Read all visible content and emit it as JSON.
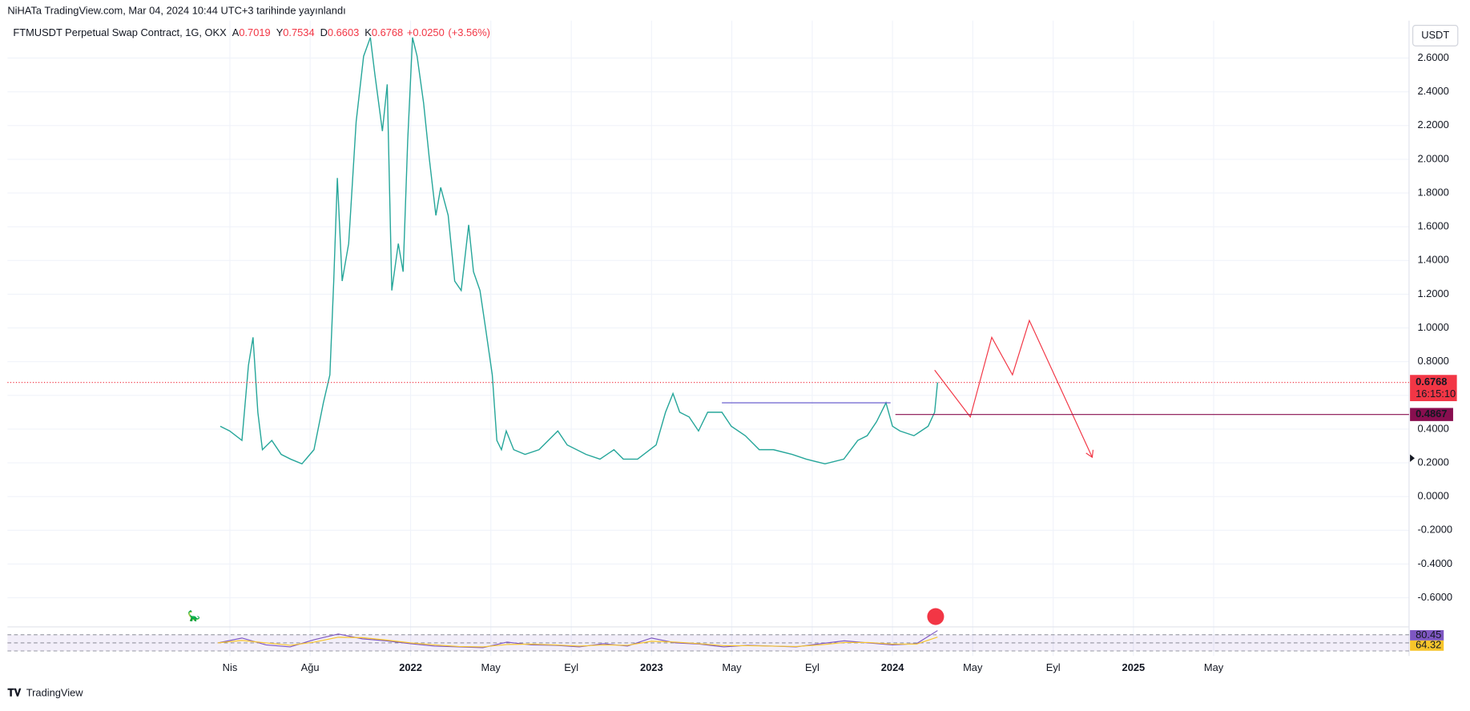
{
  "chart_data": {
    "type": "line",
    "watermark": "NiHATa TradingView.com, Mar 04, 2024 10:44 UTC+3 tarihinde yayınlandı",
    "symbol": "FTMUSDT Perpetual Swap Contract, 1G, OKX",
    "ohlc": [
      {
        "label": "A",
        "value": 0.7019
      },
      {
        "label": "Y",
        "value": 0.7534
      },
      {
        "label": "D",
        "value": 0.6603
      },
      {
        "label": "K",
        "value": 0.6768
      }
    ],
    "change": "+0.0250",
    "change_pct": "(+3.56%)",
    "currency": "USDT",
    "brand": "TradingView",
    "countdown": "16:15:10",
    "xlim": [
      2020.327,
      2026.144
    ],
    "xticks": [
      {
        "value": 2021.25,
        "label": "Nis"
      },
      {
        "value": 2021.583,
        "label": "Ağu"
      },
      2022,
      {
        "value": 2022.333,
        "label": "May"
      },
      {
        "value": 2022.667,
        "label": "Eyl"
      },
      2023,
      {
        "value": 2023.333,
        "label": "May"
      },
      {
        "value": 2023.667,
        "label": "Eyl"
      },
      2024,
      {
        "value": 2024.333,
        "label": "May"
      },
      {
        "value": 2024.667,
        "label": "Eyl"
      },
      2025,
      {
        "value": 2025.333,
        "label": "May"
      }
    ],
    "ylim": [
      -0.767,
      2.822
    ],
    "yticks": [
      {
        "value": 2.6,
        "label": "2.6000"
      },
      {
        "value": 2.4,
        "label": "2.4000"
      },
      {
        "value": 2.2,
        "label": "2.2000"
      },
      {
        "value": 2.0,
        "label": "2.0000"
      },
      {
        "value": 1.8,
        "label": "1.8000"
      },
      {
        "value": 1.6,
        "label": "1.6000"
      },
      {
        "value": 1.4,
        "label": "1.4000"
      },
      {
        "value": 1.2,
        "label": "1.2000"
      },
      {
        "value": 1.0,
        "label": "1.0000"
      },
      {
        "value": 0.8,
        "label": "0.8000"
      },
      {
        "value": 0.6,
        "label": "0.6000"
      },
      {
        "value": 0.4,
        "label": "0.4000"
      },
      {
        "value": 0.2,
        "label": "0.2000"
      },
      {
        "value": 0,
        "label": "0.0000"
      },
      {
        "value": -0.2,
        "label": "-0.2000"
      },
      {
        "value": -0.4,
        "label": "-0.4000"
      },
      {
        "value": -0.6,
        "label": "-0.6000"
      }
    ],
    "grid": true,
    "series": [
      {
        "color": "#26a69a",
        "x": [
          2021.21,
          2021.249,
          2021.3,
          2021.327,
          2021.346,
          2021.366,
          2021.385,
          2021.424,
          2021.463,
          2021.502,
          2021.549,
          2021.599,
          2021.638,
          2021.665,
          2021.681,
          2021.696,
          2021.716,
          2021.743,
          2021.774,
          2021.805,
          2021.833,
          2021.852,
          2021.883,
          2021.903,
          2021.922,
          2021.949,
          2021.969,
          2021.988,
          2022.008,
          2022.027,
          2022.054,
          2022.078,
          2022.105,
          2022.125,
          2022.156,
          2022.183,
          2022.21,
          2022.241,
          2022.261,
          2022.288,
          2022.311,
          2022.339,
          2022.358,
          2022.377,
          2022.397,
          2022.428,
          2022.475,
          2022.533,
          2022.611,
          2022.65,
          2022.728,
          2022.786,
          2022.844,
          2022.883,
          2022.942,
          2023.019,
          2023.058,
          2023.089,
          2023.117,
          2023.156,
          2023.195,
          2023.233,
          2023.292,
          2023.331,
          2023.389,
          2023.447,
          2023.506,
          2023.584,
          2023.642,
          2023.72,
          2023.798,
          2023.856,
          2023.895,
          2023.934,
          2023.973,
          2024.0,
          2024.031,
          2024.089,
          2024.148,
          2024.175,
          2024.187
        ],
        "values": [
          0.417,
          0.389,
          0.333,
          0.778,
          0.944,
          0.5,
          0.278,
          0.333,
          0.25,
          0.222,
          0.194,
          0.278,
          0.556,
          0.722,
          1.278,
          1.889,
          1.278,
          1.5,
          2.222,
          2.611,
          2.722,
          2.5,
          2.167,
          2.444,
          1.222,
          1.5,
          1.333,
          2.111,
          2.722,
          2.611,
          2.333,
          2.0,
          1.667,
          1.833,
          1.667,
          1.278,
          1.222,
          1.611,
          1.333,
          1.222,
          1.0,
          0.722,
          0.333,
          0.278,
          0.389,
          0.278,
          0.25,
          0.278,
          0.389,
          0.306,
          0.25,
          0.222,
          0.278,
          0.222,
          0.222,
          0.306,
          0.5,
          0.611,
          0.5,
          0.472,
          0.389,
          0.5,
          0.5,
          0.417,
          0.361,
          0.278,
          0.278,
          0.25,
          0.222,
          0.194,
          0.222,
          0.333,
          0.361,
          0.444,
          0.556,
          0.417,
          0.389,
          0.361,
          0.417,
          0.5,
          0.6768
        ]
      }
    ],
    "last_price": 0.6768,
    "level": {
      "value": 0.4867,
      "x": 2024.012,
      "color": "#880e4f"
    },
    "drawings": [
      {
        "color": "#5b4fc9",
        "x": [
          2023.292,
          2023.992
        ],
        "values": [
          0.556,
          0.556
        ]
      },
      {
        "color": "#f23645",
        "x": [
          2024.175,
          2024.323,
          2024.412,
          2024.498,
          2024.568,
          2024.829
        ],
        "values": [
          0.75,
          0.472,
          0.944,
          0.722,
          1.044,
          0.233
        ]
      }
    ],
    "rsi": {
      "ylim": [
        20,
        85
      ],
      "levels": [
        70,
        50,
        30
      ],
      "x": [
        2021.2,
        2021.3,
        2021.4,
        2021.5,
        2021.6,
        2021.7,
        2021.8,
        2021.9,
        2022.0,
        2022.1,
        2022.2,
        2022.3,
        2022.4,
        2022.5,
        2022.6,
        2022.7,
        2022.8,
        2022.9,
        2023.0,
        2023.1,
        2023.2,
        2023.3,
        2023.4,
        2023.5,
        2023.6,
        2023.7,
        2023.8,
        2023.9,
        2024.0,
        2024.1,
        2024.187
      ],
      "series": [
        {
          "color": "#7e57c2",
          "values": [
            50,
            62,
            45,
            40,
            58,
            72,
            60,
            55,
            48,
            42,
            40,
            38,
            52,
            45,
            44,
            40,
            48,
            42,
            62,
            50,
            47,
            40,
            44,
            42,
            40,
            48,
            55,
            50,
            45,
            48,
            80.45
          ]
        },
        {
          "color": "#f7c52b",
          "values": [
            50,
            56,
            50,
            44,
            52,
            64,
            63,
            57,
            50,
            45,
            41,
            40,
            46,
            47,
            45,
            42,
            45,
            44,
            54,
            52,
            48,
            43,
            43,
            42,
            41,
            45,
            51,
            51,
            47,
            47,
            64.32
          ]
        }
      ]
    }
  }
}
